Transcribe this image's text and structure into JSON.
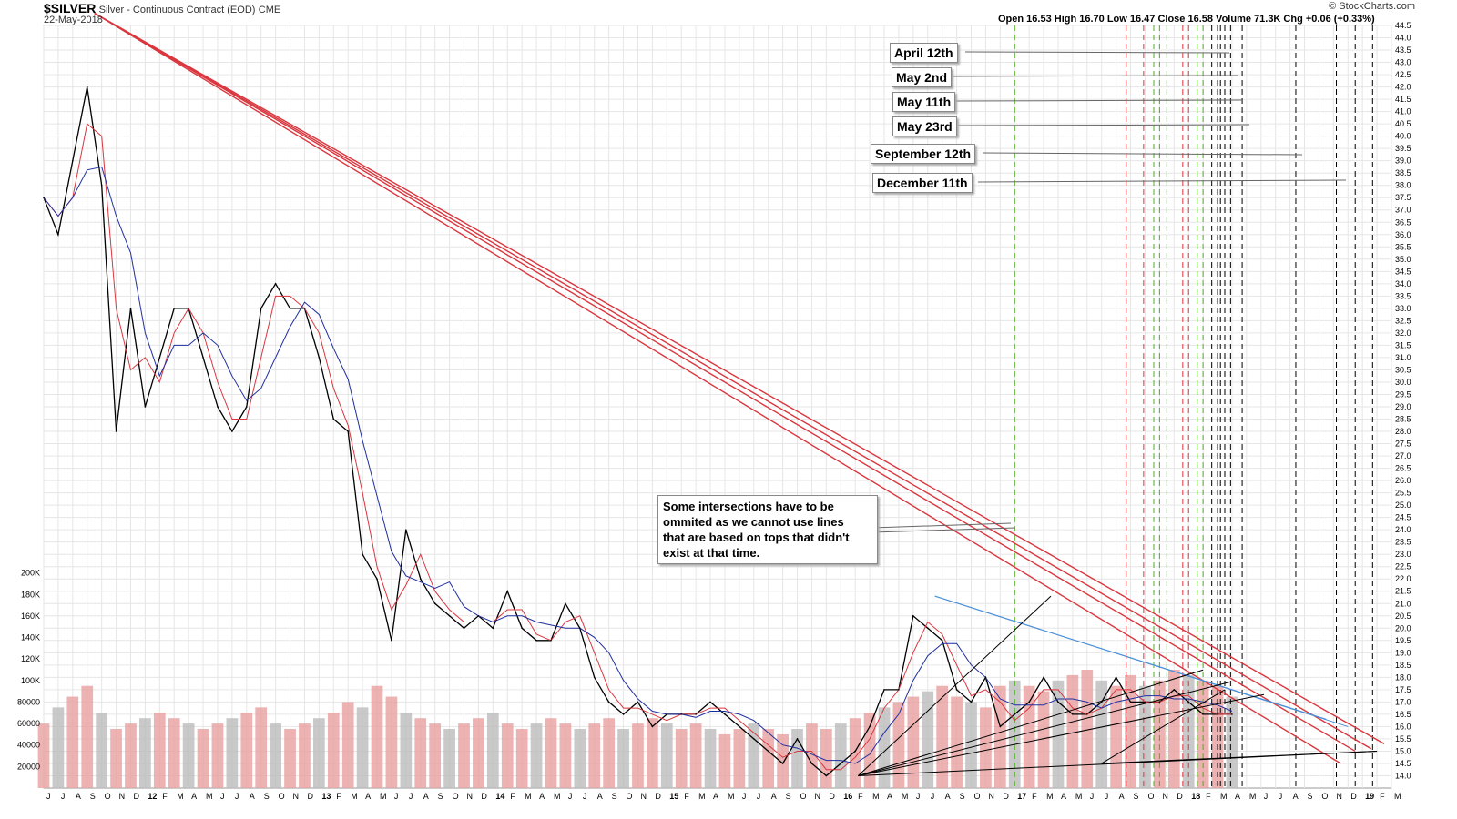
{
  "header": {
    "symbol": "$SILVER",
    "description": "Silver - Continuous Contract (EOD)",
    "exchange": "CME",
    "date": "22-May-2018",
    "watermark": "© StockCharts.com",
    "ohlc_text": "Open 16.53  High 16.70  Low 16.47  Close 16.58  Volume 71.3K  Chg +0.06 (+0.33%)"
  },
  "callouts": {
    "c1": "April 12th",
    "c2": "May 2nd",
    "c3": "May 11th",
    "c4": "May 23rd",
    "c5": "September 12th",
    "c6": "December 11th"
  },
  "note_lines": [
    "Some intersections have to be",
    "ommited as we cannot use lines",
    "that are based on tops that didn't",
    "exist at that time."
  ],
  "chart_data": {
    "type": "line",
    "title": "$SILVER Silver - Continuous Contract (EOD)",
    "price_axis": {
      "min": 13.5,
      "max": 44.5,
      "ticks": [
        "44.5",
        "44.0",
        "43.5",
        "43.0",
        "42.5",
        "42.0",
        "41.5",
        "41.0",
        "40.5",
        "40.0",
        "39.5",
        "39.0",
        "38.5",
        "38.0",
        "37.5",
        "37.0",
        "36.5",
        "36.0",
        "35.5",
        "35.0",
        "34.5",
        "34.0",
        "33.5",
        "33.0",
        "32.5",
        "32.0",
        "31.5",
        "31.0",
        "30.5",
        "30.0",
        "29.5",
        "29.0",
        "28.5",
        "28.0",
        "27.5",
        "27.0",
        "26.5",
        "26.0",
        "25.5",
        "25.0",
        "24.5",
        "24.0",
        "23.5",
        "23.0",
        "22.5",
        "22.0",
        "21.5",
        "21.0",
        "20.5",
        "20.0",
        "19.5",
        "19.0",
        "18.5",
        "18.0",
        "17.5",
        "17.0",
        "16.5",
        "16.0",
        "15.5",
        "15.0",
        "14.5",
        "14.0"
      ]
    },
    "volume_axis": {
      "max": 220000,
      "ticks": [
        "200K",
        "180K",
        "160K",
        "140K",
        "120K",
        "100K",
        "80000",
        "60000",
        "40000",
        "20000"
      ]
    },
    "x_labels": [
      "J",
      "J",
      "A",
      "S",
      "O",
      "N",
      "D",
      "12",
      "F",
      "M",
      "A",
      "M",
      "J",
      "J",
      "A",
      "S",
      "O",
      "N",
      "D",
      "13",
      "F",
      "M",
      "A",
      "M",
      "J",
      "J",
      "A",
      "S",
      "O",
      "N",
      "D",
      "14",
      "F",
      "M",
      "A",
      "M",
      "J",
      "J",
      "A",
      "S",
      "O",
      "N",
      "D",
      "15",
      "F",
      "M",
      "A",
      "M",
      "J",
      "J",
      "A",
      "S",
      "O",
      "N",
      "D",
      "16",
      "F",
      "M",
      "A",
      "M",
      "J",
      "J",
      "A",
      "S",
      "O",
      "N",
      "D",
      "17",
      "F",
      "M",
      "A",
      "M",
      "J",
      "J",
      "A",
      "S",
      "O",
      "N",
      "D",
      "18",
      "F",
      "M",
      "A",
      "M",
      "J",
      "J",
      "A",
      "S",
      "O",
      "N",
      "D",
      "19",
      "F",
      "M"
    ],
    "x_start": 0,
    "x_end": 93,
    "price_series": [
      [
        0,
        37.5
      ],
      [
        1,
        36
      ],
      [
        2,
        39
      ],
      [
        3,
        42
      ],
      [
        4,
        38
      ],
      [
        5,
        28
      ],
      [
        6,
        33
      ],
      [
        7,
        29
      ],
      [
        8,
        31
      ],
      [
        9,
        33
      ],
      [
        10,
        33
      ],
      [
        11,
        31
      ],
      [
        12,
        29
      ],
      [
        13,
        28
      ],
      [
        14,
        29
      ],
      [
        15,
        33
      ],
      [
        16,
        34
      ],
      [
        17,
        33
      ],
      [
        18,
        33
      ],
      [
        19,
        31
      ],
      [
        20,
        28.5
      ],
      [
        21,
        28
      ],
      [
        22,
        23
      ],
      [
        23,
        22
      ],
      [
        24,
        19.5
      ],
      [
        25,
        24
      ],
      [
        26,
        22
      ],
      [
        27,
        21
      ],
      [
        28,
        20.5
      ],
      [
        29,
        20
      ],
      [
        30,
        20.5
      ],
      [
        31,
        20
      ],
      [
        32,
        21.5
      ],
      [
        33,
        20
      ],
      [
        34,
        19.5
      ],
      [
        35,
        19.5
      ],
      [
        36,
        21
      ],
      [
        37,
        20
      ],
      [
        38,
        18
      ],
      [
        39,
        17
      ],
      [
        40,
        16.5
      ],
      [
        41,
        17
      ],
      [
        42,
        16
      ],
      [
        43,
        16.5
      ],
      [
        44,
        16.5
      ],
      [
        45,
        16.5
      ],
      [
        46,
        17
      ],
      [
        47,
        16.5
      ],
      [
        48,
        16
      ],
      [
        49,
        15.5
      ],
      [
        50,
        15
      ],
      [
        51,
        14.5
      ],
      [
        52,
        15.5
      ],
      [
        53,
        14.5
      ],
      [
        54,
        14
      ],
      [
        55,
        14.5
      ],
      [
        56,
        15
      ],
      [
        57,
        16
      ],
      [
        58,
        17.5
      ],
      [
        59,
        17.5
      ],
      [
        60,
        20.5
      ],
      [
        61,
        20
      ],
      [
        62,
        19.5
      ],
      [
        63,
        17.5
      ],
      [
        64,
        17
      ],
      [
        65,
        18
      ],
      [
        66,
        16
      ],
      [
        67,
        16.5
      ],
      [
        68,
        17
      ],
      [
        69,
        18
      ],
      [
        70,
        17
      ],
      [
        71,
        16.5
      ],
      [
        72,
        16.5
      ],
      [
        73,
        17
      ],
      [
        74,
        18
      ],
      [
        75,
        17
      ],
      [
        76,
        17
      ],
      [
        77,
        17
      ],
      [
        78,
        17.5
      ],
      [
        79,
        17
      ],
      [
        80,
        16.5
      ],
      [
        81,
        16.5
      ],
      [
        82,
        16.5
      ]
    ],
    "volume_values": [
      60000,
      75000,
      85000,
      95000,
      70000,
      55000,
      60000,
      65000,
      70000,
      65000,
      60000,
      55000,
      60000,
      65000,
      70000,
      75000,
      60000,
      55000,
      60000,
      65000,
      70000,
      80000,
      75000,
      95000,
      85000,
      70000,
      65000,
      60000,
      55000,
      60000,
      65000,
      70000,
      60000,
      55000,
      60000,
      65000,
      60000,
      55000,
      60000,
      65000,
      55000,
      60000,
      65000,
      60000,
      55000,
      60000,
      55000,
      50000,
      55000,
      60000,
      55000,
      50000,
      55000,
      60000,
      55000,
      60000,
      65000,
      70000,
      75000,
      80000,
      85000,
      90000,
      95000,
      85000,
      80000,
      75000,
      95000,
      100000,
      95000,
      90000,
      100000,
      105000,
      110000,
      100000,
      95000,
      105000,
      95000,
      100000,
      110000,
      105000,
      100000,
      95000,
      85000
    ],
    "vertical_lines": {
      "green": [
        67.0,
        76.6,
        77.0,
        77.5,
        79.6,
        80.0
      ],
      "red": [
        74.7,
        75.9,
        78.6,
        79.0
      ],
      "black": [
        80.6,
        81.0,
        81.2,
        81.5,
        81.9,
        82.7,
        86.4,
        89.2,
        90.5,
        91.7
      ]
    },
    "trendlines": {
      "red": [
        {
          "from": [
            3.5,
            45
          ],
          "to": [
            89.5,
            14.5
          ]
        },
        {
          "from": [
            3.5,
            45
          ],
          "to": [
            90.5,
            15.0
          ]
        },
        {
          "from": [
            3.5,
            45
          ],
          "to": [
            91.6,
            15.1
          ]
        },
        {
          "from": [
            3.5,
            45
          ],
          "to": [
            92.5,
            15.3
          ]
        }
      ],
      "blue": [
        {
          "from": [
            61.5,
            21.3
          ],
          "to": [
            88.5,
            16.3
          ]
        },
        {
          "from": [
            61.5,
            21.3
          ],
          "to": [
            90.0,
            16.0
          ]
        }
      ],
      "black": [
        {
          "from": [
            56.2,
            14.0
          ],
          "to": [
            69.5,
            21.3
          ]
        },
        {
          "from": [
            56.2,
            14.0
          ],
          "to": [
            80.0,
            18.3
          ]
        },
        {
          "from": [
            56.2,
            14.0
          ],
          "to": [
            81.8,
            17.8
          ]
        },
        {
          "from": [
            56.2,
            14.0
          ],
          "to": [
            84.2,
            17.3
          ]
        },
        {
          "from": [
            56.2,
            14.0
          ],
          "to": [
            92.0,
            15.0
          ]
        },
        {
          "from": [
            73.0,
            14.5
          ],
          "to": [
            81.5,
            17.5
          ]
        },
        {
          "from": [
            73.0,
            14.5
          ],
          "to": [
            92.0,
            15.0
          ]
        }
      ]
    },
    "legend": "none"
  }
}
